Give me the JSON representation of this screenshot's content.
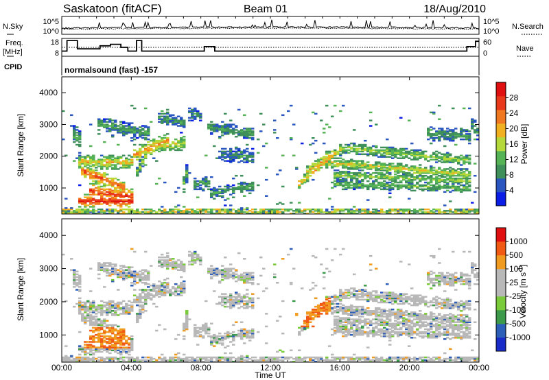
{
  "header": {
    "station": "Saskatoon (fitACF)",
    "beam": "Beam 01",
    "date": "18/Aug/2010"
  },
  "noise_panel": {
    "left_label": "N.Sky",
    "left_ticks": [
      "10^5",
      "10^0"
    ],
    "right_label": "N.Search",
    "right_ticks": [
      "10^5",
      "10^0"
    ]
  },
  "freq_panel": {
    "left_label_1": "Freq.",
    "left_label_2": "[MHz]",
    "left_ticks": [
      "18",
      "8"
    ],
    "right_label": "Nave",
    "right_ticks": [
      "60",
      "0"
    ]
  },
  "cpid_panel": {
    "label": "CPID",
    "program": "normalsound (fast) -157"
  },
  "colors": {
    "power_scale": [
      "#0a1ee6",
      "#2a56c0",
      "#3f8f5a",
      "#55b255",
      "#b5d93a",
      "#f0b020",
      "#f07820",
      "#e83a1a",
      "#e01010"
    ],
    "velocity_scale": [
      "#e01010",
      "#f05a14",
      "#f09a20",
      "#b8b8b8",
      "#b8b8b8",
      "#7acb3a",
      "#3c9a4a",
      "#2e5fb8",
      "#1a2cc8"
    ]
  },
  "chart_data": [
    {
      "type": "heatmap",
      "title": "Power",
      "xlabel": "Time UT",
      "ylabel": "Slant Range [km]",
      "x_ticks": [
        "00:00",
        "04:00",
        "08:00",
        "12:00",
        "16:00",
        "20:00",
        "00:00"
      ],
      "y_ticks": [
        "1000",
        "2000",
        "3000",
        "4000"
      ],
      "ylim": [
        180,
        4500
      ],
      "colorbar_label": "Power [dB]",
      "colorbar_ticks": [
        "4",
        "8",
        "12",
        "16",
        "20",
        "24",
        "28"
      ],
      "colorbar_range": [
        0,
        30
      ]
    },
    {
      "type": "heatmap",
      "title": "Velocity",
      "xlabel": "Time UT",
      "ylabel": "Slant Range [km]",
      "x_ticks": [
        "00:00",
        "04:00",
        "08:00",
        "12:00",
        "16:00",
        "20:00",
        "00:00"
      ],
      "y_ticks": [
        "1000",
        "2000",
        "3000",
        "4000"
      ],
      "ylim": [
        180,
        4500
      ],
      "colorbar_label": "Velocity [m s^-1]",
      "colorbar_ticks": [
        "1000",
        "500",
        "100",
        "25",
        "-25",
        "-100",
        "-500",
        "-1000"
      ]
    }
  ]
}
